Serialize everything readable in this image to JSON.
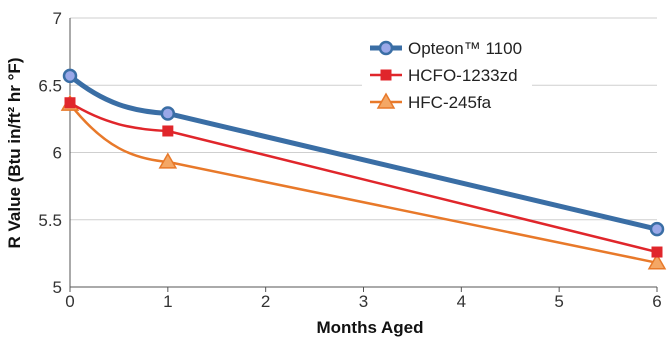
{
  "chart_data": {
    "type": "line",
    "title": "",
    "xlabel": "Months Aged",
    "ylabel": "R Value (Btu in/ft² hr °F)",
    "x": [
      0,
      1,
      6
    ],
    "xlim": [
      0,
      6
    ],
    "ylim": [
      5,
      7
    ],
    "xticks": [
      "0",
      "1",
      "2",
      "3",
      "4",
      "5",
      "6"
    ],
    "yticks": [
      "5",
      "5.5",
      "6",
      "6.5",
      "7"
    ],
    "grid": {
      "horizontal": true,
      "vertical": false
    },
    "legend_position": "top-right",
    "series": [
      {
        "name": "Opteon™ 1100",
        "values": [
          6.57,
          6.29,
          5.43
        ],
        "color": "#3a6ea5",
        "marker": "circle"
      },
      {
        "name": "HCFO-1233zd",
        "values": [
          6.37,
          6.16,
          5.26
        ],
        "color": "#e0262b",
        "marker": "square"
      },
      {
        "name": "HFC-245fa",
        "values": [
          6.36,
          5.93,
          5.18
        ],
        "color": "#e8792a",
        "marker": "triangle"
      }
    ]
  }
}
